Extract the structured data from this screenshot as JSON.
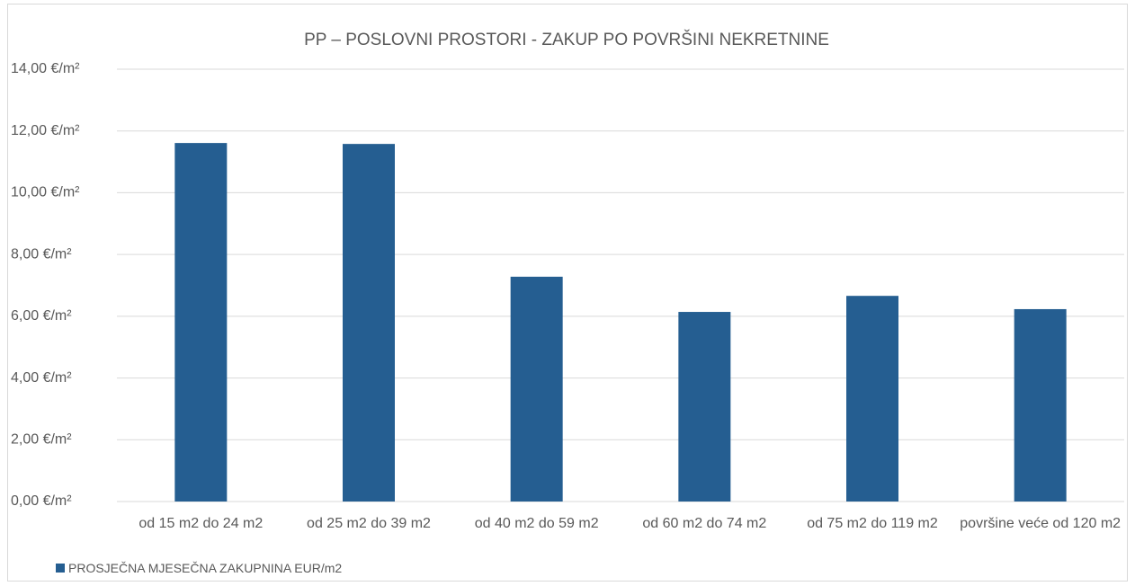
{
  "chart_data": {
    "type": "bar",
    "title": "PP – POSLOVNI PROSTORI - ZAKUP PO POVRŠINI NEKRETNINE",
    "categories": [
      "od 15 m2 do 24 m2",
      "od 25 m2 do 39 m2",
      "od 40 m2 do 59 m2",
      "od 60 m2 do 74 m2",
      "od 75 m2 do 119 m2",
      "površine veće od 120 m2"
    ],
    "series": [
      {
        "name": "PROSJEČNA MJESEČNA ZAKUPNINA EUR/m2",
        "color": "#255e91",
        "values": [
          11.61,
          11.58,
          7.28,
          6.14,
          6.66,
          6.23
        ]
      }
    ],
    "ylim": [
      0,
      14
    ],
    "yticks": [
      {
        "value": 0,
        "label": "0,00 €/m²"
      },
      {
        "value": 2,
        "label": "2,00 €/m²"
      },
      {
        "value": 4,
        "label": "4,00 €/m²"
      },
      {
        "value": 6,
        "label": "6,00 €/m²"
      },
      {
        "value": 8,
        "label": "8,00 €/m²"
      },
      {
        "value": 10,
        "label": "10,00 €/m²"
      },
      {
        "value": 12,
        "label": "12,00 €/m²"
      },
      {
        "value": 14,
        "label": "14,00 €/m²"
      }
    ],
    "grid": true,
    "legend": "bottom-left"
  }
}
